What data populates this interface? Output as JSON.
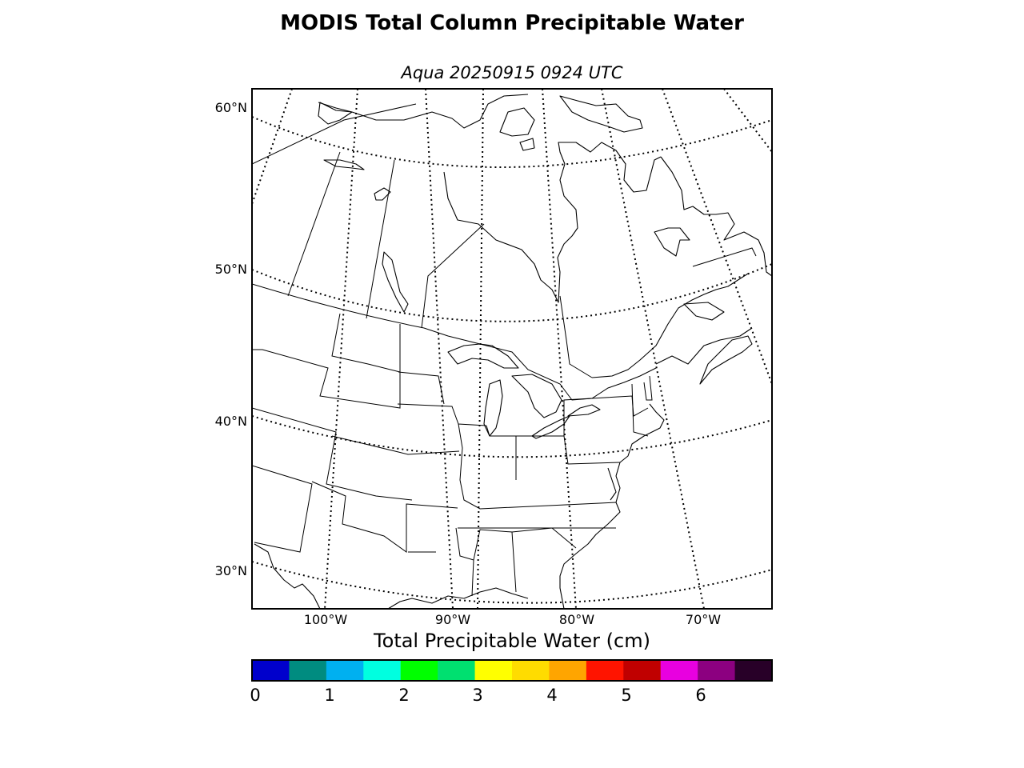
{
  "title": "MODIS Total Column Precipitable Water",
  "subtitle": "Aqua 20250915 0924 UTC",
  "map": {
    "lat_labels": [
      "60°N",
      "50°N",
      "40°N",
      "30°N"
    ],
    "lon_labels": [
      "100°W",
      "90°W",
      "80°W",
      "70°W"
    ]
  },
  "colorbar": {
    "label": "Total Precipitable Water (cm)",
    "colors": [
      "#0000cc",
      "#008c80",
      "#00b0f0",
      "#00ffe0",
      "#00ff00",
      "#00e070",
      "#ffff00",
      "#ffdc00",
      "#ffa500",
      "#ff1400",
      "#c00000",
      "#e800e0",
      "#8c0080",
      "#280028"
    ],
    "tick_labels": [
      "0",
      "1",
      "2",
      "3",
      "4",
      "5",
      "6"
    ]
  }
}
